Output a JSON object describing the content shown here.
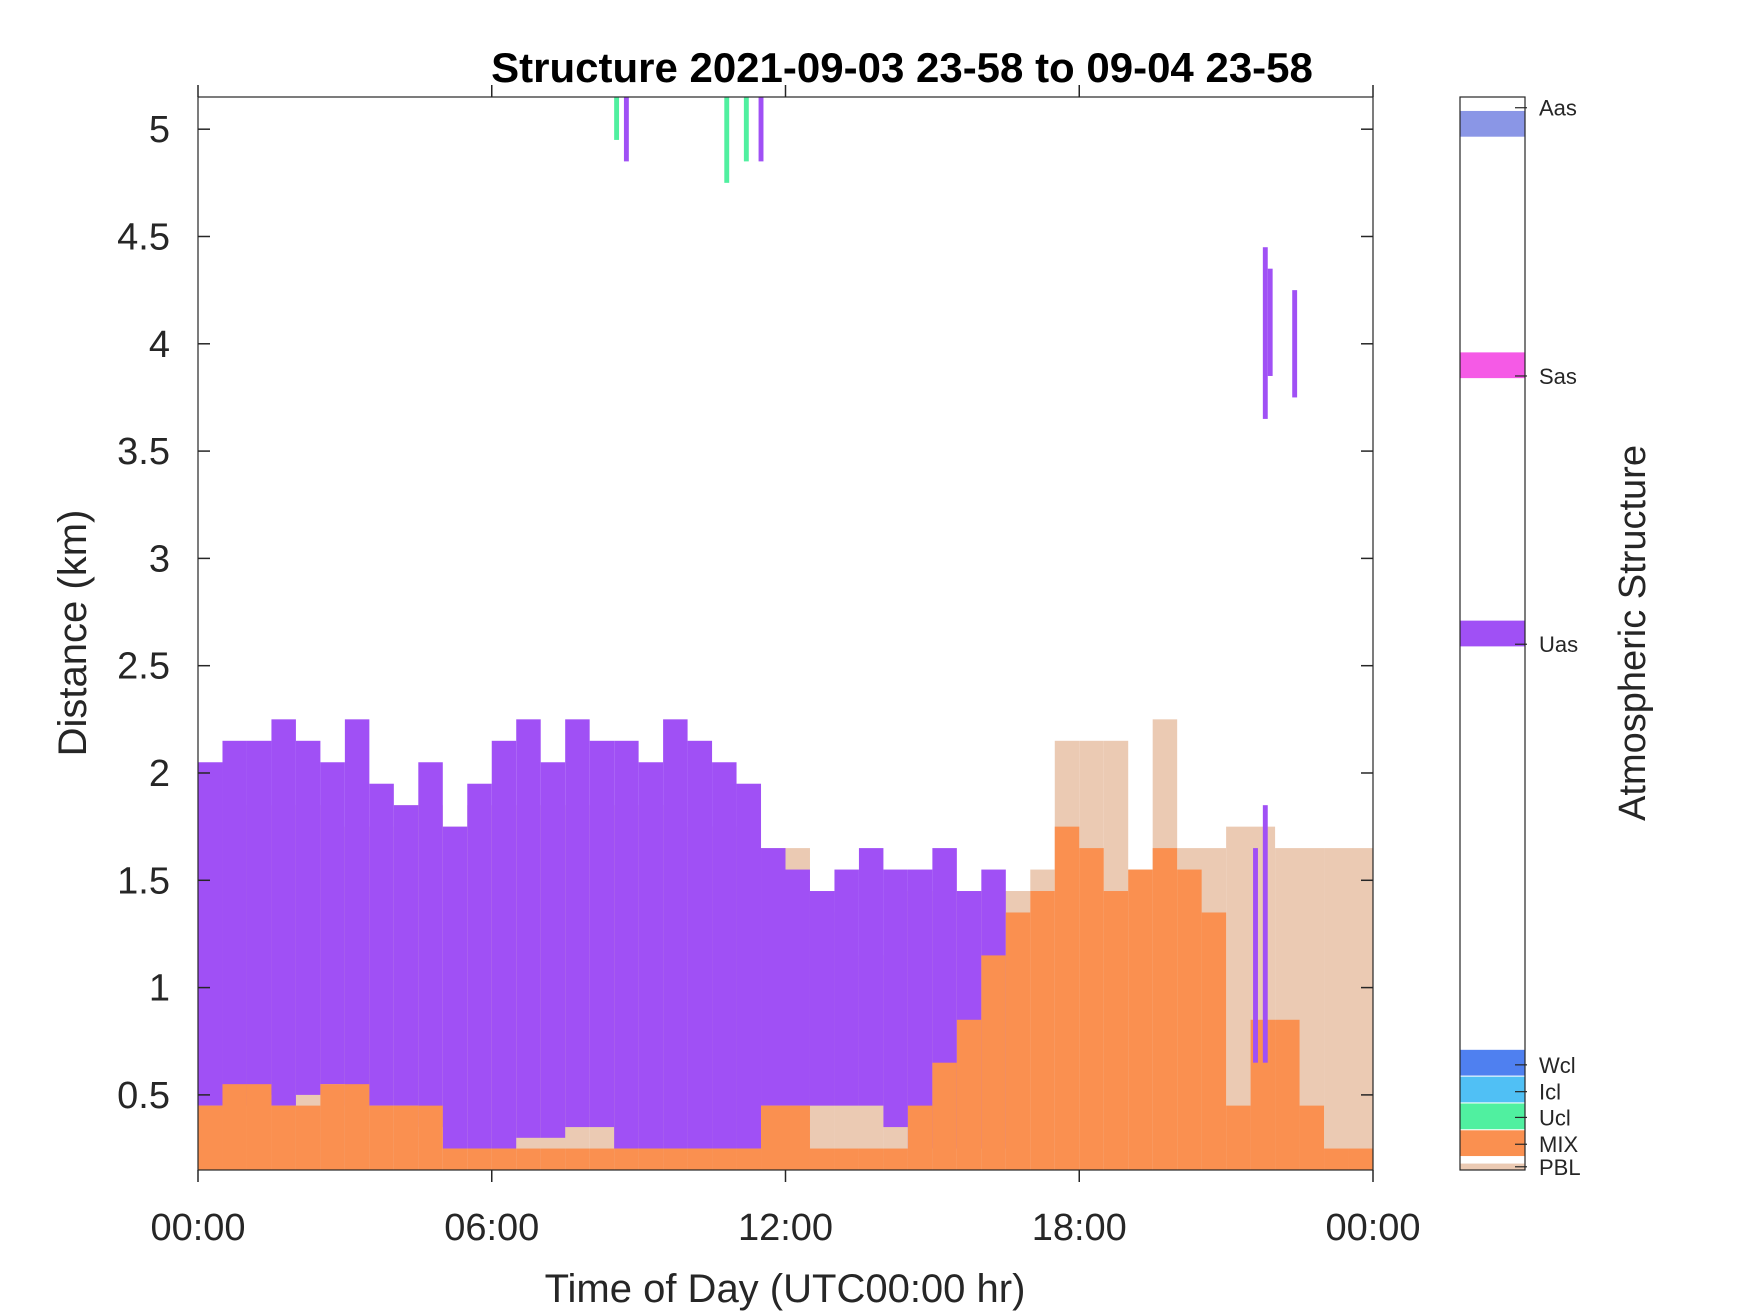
{
  "chart_data": {
    "type": "heatmap",
    "title": "Structure 2021-09-03 23-58 to 09-04 23-58",
    "xlabel": "Time of Day (UTC00:00 hr)",
    "ylabel": "Distance (km)",
    "xlim": [
      0,
      24
    ],
    "ylim": [
      0.15,
      5.15
    ],
    "x_ticks": [
      0,
      6,
      12,
      18,
      24
    ],
    "x_tick_labels": [
      "00:00",
      "06:00",
      "12:00",
      "18:00",
      "00:00"
    ],
    "y_ticks": [
      0.5,
      1,
      1.5,
      2,
      2.5,
      3,
      3.5,
      4,
      4.5,
      5
    ],
    "y_tick_labels": [
      "0.5",
      "1",
      "1.5",
      "2",
      "2.5",
      "3",
      "3.5",
      "4",
      "4.5",
      "5"
    ],
    "colorbar": {
      "title": "Atmospheric Structure",
      "categories": [
        {
          "label": "Aas",
          "color": "#8a96e6"
        },
        {
          "label": "Sas",
          "color": "#f55ae6"
        },
        {
          "label": "Uas",
          "color": "#a050f5"
        },
        {
          "label": "Wcl",
          "color": "#4f80f0"
        },
        {
          "label": "Icl",
          "color": "#50c0f5"
        },
        {
          "label": "Ucl",
          "color": "#50f0a0"
        },
        {
          "label": "MIX",
          "color": "#fa9050"
        },
        {
          "label": "PBL",
          "color": "#ebcab3"
        }
      ]
    },
    "series": [
      {
        "name": "PBL",
        "color": "#ebcab3",
        "description": "top height (km) over time (hours)",
        "x": [
          0,
          0.3,
          2.0,
          2.8,
          4.0,
          5.0,
          5.5,
          6.5,
          8.0,
          10.0,
          11.5,
          12.5,
          13.0,
          14.0,
          14.7,
          15.5,
          16.0,
          17.0,
          17.5,
          18.0,
          18.5,
          19.0,
          19.5,
          20.0,
          21.0,
          22.0,
          23.0,
          24.0
        ],
        "top": [
          1.95,
          1.85,
          1.85,
          1.75,
          1.85,
          1.75,
          1.85,
          1.85,
          1.85,
          1.75,
          1.65,
          1.35,
          1.15,
          1.45,
          1.45,
          1.45,
          1.45,
          1.55,
          2.15,
          2.15,
          2.15,
          1.55,
          2.25,
          1.65,
          1.75,
          1.65,
          1.65,
          1.65
        ]
      },
      {
        "name": "Uas",
        "color": "#a050f5",
        "description": "dense lower aerosol layer; tops (km) sampled per 0.5 h",
        "x": [
          0.25,
          0.75,
          1.25,
          1.75,
          2.25,
          2.75,
          3.25,
          3.75,
          4.25,
          4.75,
          5.25,
          5.75,
          6.25,
          6.75,
          7.25,
          7.75,
          8.25,
          8.75,
          9.25,
          9.75,
          10.25,
          10.75,
          11.25,
          11.75,
          12.25,
          12.75,
          13.25,
          13.75,
          14.25,
          14.75,
          15.25,
          15.75,
          16.25
        ],
        "top": [
          2.05,
          2.15,
          2.15,
          2.25,
          2.15,
          2.05,
          2.25,
          1.95,
          1.85,
          2.05,
          1.75,
          1.95,
          2.15,
          2.25,
          2.05,
          2.25,
          2.15,
          2.15,
          2.05,
          2.25,
          2.15,
          2.05,
          1.95,
          1.65,
          1.55,
          1.45,
          1.55,
          1.65,
          1.55,
          1.55,
          1.65,
          1.45,
          1.55
        ],
        "bottom": [
          0.45,
          0.45,
          0.5,
          0.45,
          0.5,
          0.55,
          0.45,
          0.45,
          0.45,
          0.35,
          0.25,
          0.25,
          0.25,
          0.3,
          0.3,
          0.35,
          0.35,
          0.25,
          0.25,
          0.25,
          0.25,
          0.25,
          0.25,
          0.45,
          0.45,
          0.45,
          0.45,
          0.45,
          0.35,
          0.25,
          0.25,
          0.25,
          0.25
        ]
      },
      {
        "name": "Uas (upper)",
        "color": "#a050f5",
        "description": "isolated upper Uas segments [time h, bottom km, top km]",
        "segments": [
          [
            8.75,
            4.85,
            5.15
          ],
          [
            11.5,
            4.85,
            5.15
          ],
          [
            21.8,
            3.65,
            4.45
          ],
          [
            21.9,
            3.85,
            4.35
          ],
          [
            22.4,
            3.75,
            4.25
          ],
          [
            21.6,
            0.65,
            1.65
          ],
          [
            21.8,
            0.65,
            1.85
          ]
        ]
      },
      {
        "name": "Ucl",
        "color": "#50f0a0",
        "description": "isolated Ucl segments [time h, bottom km, top km]",
        "segments": [
          [
            8.55,
            4.95,
            5.15
          ],
          [
            10.8,
            4.75,
            5.15
          ],
          [
            11.2,
            4.85,
            5.15
          ]
        ]
      },
      {
        "name": "MIX",
        "color": "#fa9050",
        "description": "mixing layer top (km) sampled per 0.5 h",
        "x": [
          0.25,
          0.75,
          1.25,
          1.75,
          2.25,
          2.75,
          3.25,
          3.75,
          4.25,
          4.75,
          5.25,
          5.75,
          6.25,
          6.75,
          7.25,
          7.75,
          8.25,
          8.75,
          9.25,
          9.75,
          10.25,
          10.75,
          11.25,
          11.75,
          12.25,
          12.75,
          13.25,
          13.75,
          14.25,
          14.75,
          15.25,
          15.75,
          16.25,
          16.75,
          17.25,
          17.75,
          18.25,
          18.75,
          19.25,
          19.75,
          20.25,
          20.75,
          21.25,
          21.75,
          22.25,
          22.75,
          23.25,
          23.75
        ],
        "top": [
          0.45,
          0.55,
          0.55,
          0.45,
          0.45,
          0.55,
          0.55,
          0.45,
          0.45,
          0.45,
          0.25,
          0.25,
          0.25,
          0.25,
          0.25,
          0.25,
          0.25,
          0.25,
          0.25,
          0.25,
          0.25,
          0.25,
          0.25,
          0.45,
          0.45,
          0.25,
          0.25,
          0.25,
          0.25,
          0.45,
          0.65,
          0.85,
          1.15,
          1.35,
          1.45,
          1.75,
          1.65,
          1.45,
          1.55,
          1.65,
          1.55,
          1.35,
          0.45,
          0.85,
          0.85,
          0.45,
          0.25,
          0.25
        ]
      }
    ]
  }
}
